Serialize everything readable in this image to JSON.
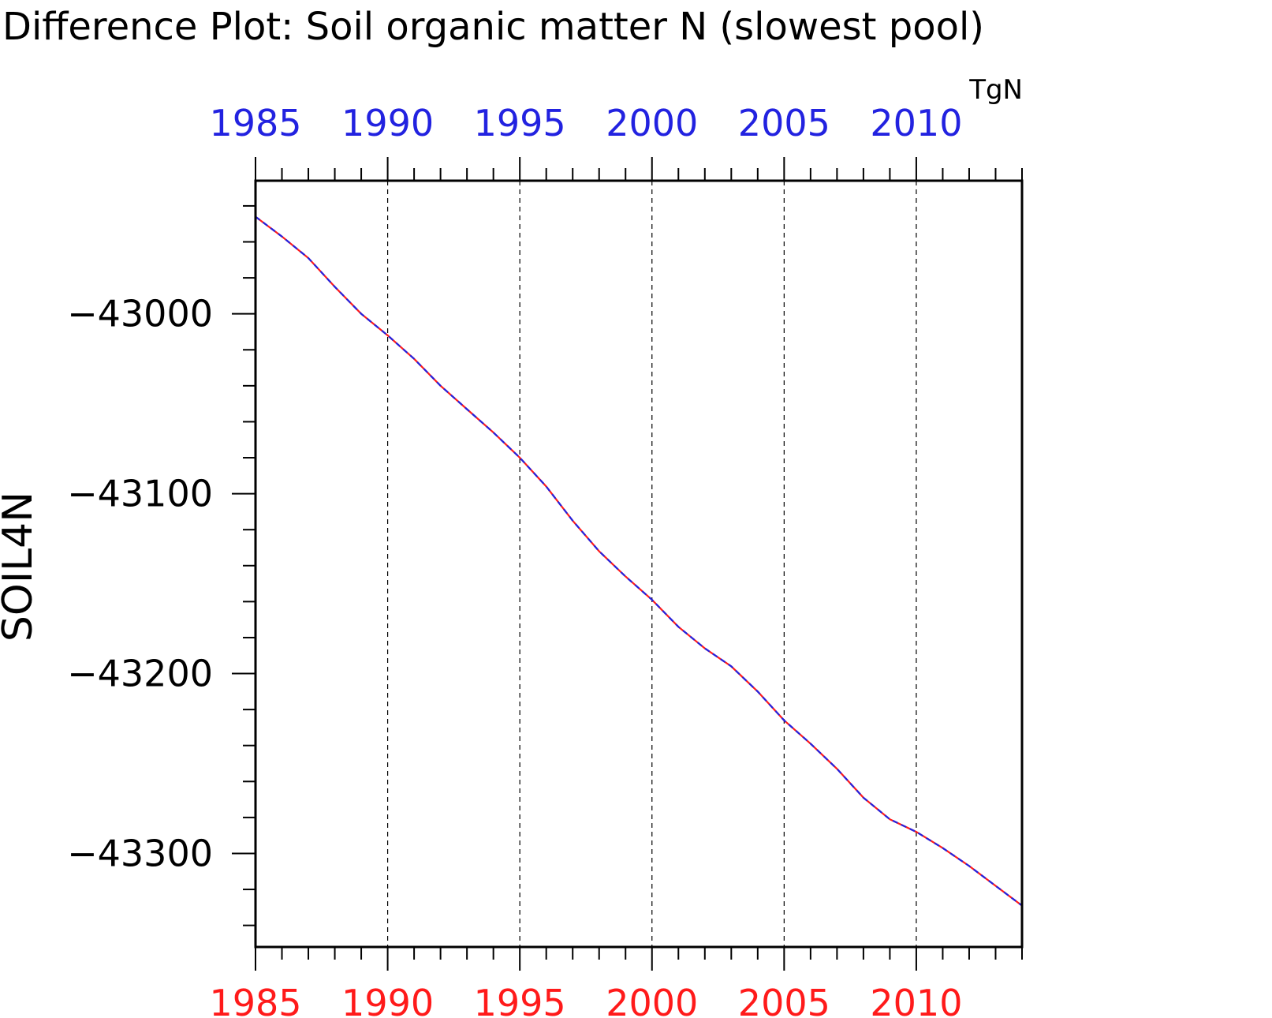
{
  "title": "Difference Plot: Soil organic matter N (slowest pool)",
  "units": "TgN",
  "colors": {
    "top_axis_labels": "#2222e0",
    "bottom_axis_labels": "#ff1a1a",
    "line_a": "#ff1a1a",
    "line_b": "#2222e0",
    "text": "#000000"
  },
  "chart_data": {
    "type": "line",
    "title": "Difference Plot: Soil organic matter N (slowest pool)",
    "ylabel": "SOIL4N",
    "xlabel": "",
    "units": "TgN",
    "xlim": [
      1985,
      2014
    ],
    "ylim": [
      -43352,
      -42926
    ],
    "x_ticks": [
      1985,
      1990,
      1995,
      2000,
      2005,
      2010
    ],
    "x_tick_labels_top": [
      "1985",
      "1990",
      "1995",
      "2000",
      "2005",
      "2010"
    ],
    "x_tick_labels_bottom": [
      "1985",
      "1990",
      "1995",
      "2000",
      "2005",
      "2010"
    ],
    "y_ticks": [
      -43000,
      -43100,
      -43200,
      -43300
    ],
    "y_tick_labels": [
      "−43000",
      "−43100",
      "−43200",
      "−43300"
    ],
    "grid": "vertical dashed at major x ticks",
    "series": [
      {
        "style": "solid red",
        "x": [
          1985,
          1986,
          1987,
          1988,
          1989,
          1990,
          1991,
          1992,
          1993,
          1994,
          1995,
          1996,
          1997,
          1998,
          1999,
          2000,
          2001,
          2002,
          2003,
          2004,
          2005,
          2006,
          2007,
          2008,
          2009,
          2010,
          2011,
          2012,
          2013,
          2014
        ],
        "values": [
          -42946,
          -42957,
          -42969,
          -42985,
          -43000,
          -43012,
          -43025,
          -43040,
          -43053,
          -43066,
          -43080,
          -43096,
          -43115,
          -43132,
          -43146,
          -43159,
          -43174,
          -43186,
          -43196,
          -43210,
          -43226,
          -43239,
          -43253,
          -43269,
          -43281,
          -43288,
          -43297,
          -43307,
          -43318,
          -43329
        ]
      },
      {
        "style": "dashed blue",
        "x": [
          1985,
          1986,
          1987,
          1988,
          1989,
          1990,
          1991,
          1992,
          1993,
          1994,
          1995,
          1996,
          1997,
          1998,
          1999,
          2000,
          2001,
          2002,
          2003,
          2004,
          2005,
          2006,
          2007,
          2008,
          2009,
          2010,
          2011,
          2012,
          2013,
          2014
        ],
        "values": [
          -42946,
          -42957,
          -42969,
          -42985,
          -43000,
          -43012,
          -43025,
          -43040,
          -43053,
          -43066,
          -43080,
          -43096,
          -43115,
          -43132,
          -43146,
          -43159,
          -43174,
          -43186,
          -43196,
          -43210,
          -43226,
          -43239,
          -43253,
          -43269,
          -43281,
          -43288,
          -43297,
          -43307,
          -43318,
          -43329
        ]
      }
    ]
  }
}
